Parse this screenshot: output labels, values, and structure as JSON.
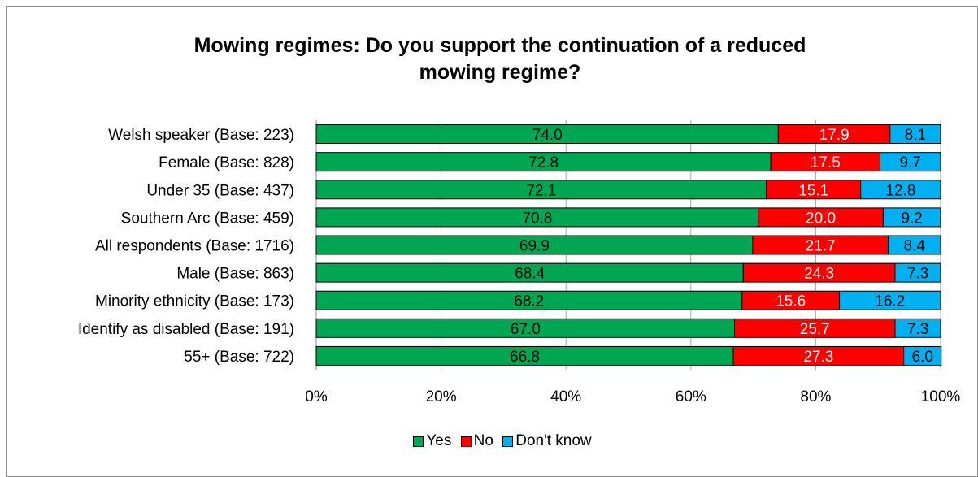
{
  "chart_data": {
    "type": "bar",
    "orientation": "horizontal",
    "stacked": true,
    "title": "Mowing regimes: Do you support the continuation of a reduced mowing regime?",
    "title_lines": [
      "Mowing regimes: Do you support the continuation of a reduced",
      "mowing regime?"
    ],
    "categories": [
      "Welsh speaker (Base: 223)",
      "Female (Base: 828)",
      "Under 35 (Base: 437)",
      "Southern Arc (Base: 459)",
      "All respondents (Base: 1716)",
      "Male (Base: 863)",
      "Minority ethnicity (Base: 173)",
      "Identify as disabled (Base: 191)",
      "55+ (Base: 722)"
    ],
    "series": [
      {
        "name": "Yes",
        "color": "#00a651",
        "label_color": "#000000",
        "values": [
          74.0,
          72.8,
          72.1,
          70.8,
          69.9,
          68.4,
          68.2,
          67.0,
          66.8
        ]
      },
      {
        "name": "No",
        "color": "#ff0000",
        "label_color": "#ffffff",
        "values": [
          17.9,
          17.5,
          15.1,
          20.0,
          21.7,
          24.3,
          15.6,
          25.7,
          27.3
        ]
      },
      {
        "name": "Don't know",
        "color": "#00b0f0",
        "label_color": "#000000",
        "values": [
          8.1,
          9.7,
          12.8,
          9.2,
          8.4,
          7.3,
          16.2,
          7.3,
          6.0
        ]
      }
    ],
    "xlim": [
      0,
      100
    ],
    "x_ticks": [
      "0%",
      "20%",
      "40%",
      "60%",
      "80%",
      "100%"
    ],
    "grid": true,
    "legend_position": "bottom"
  }
}
